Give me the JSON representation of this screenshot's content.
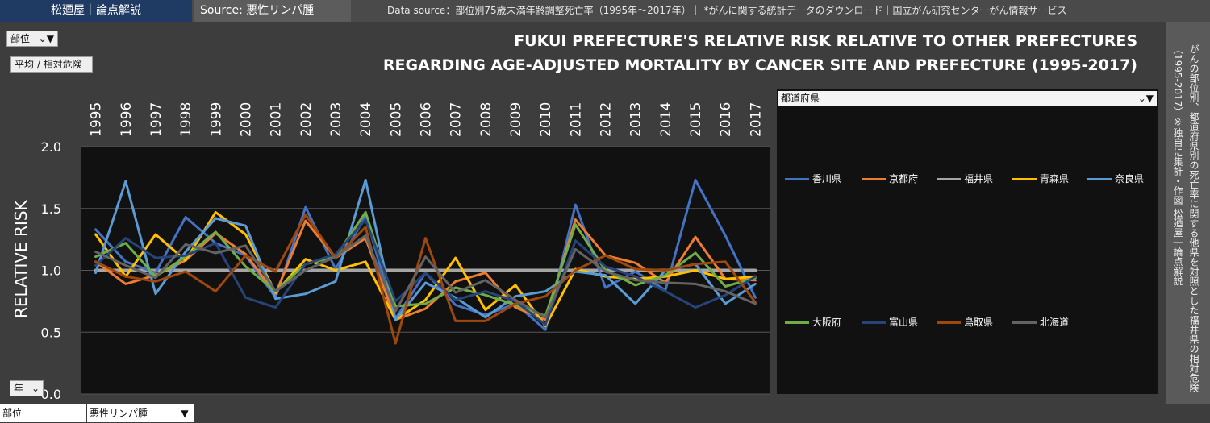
{
  "header": {
    "brand": "松廼屋｜論点解説",
    "source": "Source: 悪性リンパ腫",
    "datasource": "Data source：部位別75歳未満年齢調整死亡率（1995年～2017年）｜ *がんに関する統計データのダウンロード｜国立がん研究センターがん情報サービス"
  },
  "filters": {
    "site_label": "部位",
    "measure_label": "平均 / 相対危険",
    "year_label": "年",
    "prefecture_label": "都道府県"
  },
  "side_note": "がんの部位別、都道府県別の死亡率に関する他県を対照とした福井県の相対危険（1995-2017）※独自に集計・作図 松廼屋｜論点解説",
  "bottom": {
    "field_label": "部位",
    "field_value": "悪性リンパ腫"
  },
  "chart_data": {
    "type": "line",
    "title_line1": "FUKUI PREFECTURE'S RELATIVE RISK RELATIVE TO OTHER PREFECTURES",
    "title_line2": "REGARDING AGE-ADJUSTED MORTALITY BY CANCER SITE AND PREFECTURE (1995-2017)",
    "ylabel": "RELATIVE RISK",
    "ylim": [
      0,
      2
    ],
    "yticks": [
      "0.0",
      "0.5",
      "1.0",
      "1.5",
      "2.0"
    ],
    "grid": true,
    "legend_position": "right",
    "categories": [
      "1995",
      "1996",
      "1997",
      "1998",
      "1999",
      "2000",
      "2001",
      "2002",
      "2003",
      "2004",
      "2005",
      "2006",
      "2007",
      "2008",
      "2009",
      "2010",
      "2011",
      "2012",
      "2013",
      "2014",
      "2015",
      "2016",
      "2017"
    ],
    "series": [
      {
        "name": "香川県",
        "color": "#4472c4",
        "values": [
          1.33,
          1.07,
          0.98,
          1.43,
          1.22,
          1.12,
          0.78,
          1.51,
          1.01,
          1.44,
          0.61,
          0.98,
          0.72,
          0.64,
          0.73,
          0.52,
          1.53,
          0.86,
          0.99,
          0.84,
          1.73,
          1.28,
          0.78
        ]
      },
      {
        "name": "京都府",
        "color": "#ed7d31",
        "values": [
          1.07,
          0.89,
          0.96,
          1.08,
          1.3,
          1.13,
          0.81,
          1.4,
          1.1,
          1.26,
          0.6,
          0.69,
          0.91,
          0.98,
          0.7,
          0.6,
          1.41,
          1.12,
          1.06,
          0.9,
          1.27,
          0.93,
          0.92
        ]
      },
      {
        "name": "福井県",
        "color": "#a5a5a5",
        "values": [
          1.0,
          1.0,
          1.0,
          1.0,
          1.0,
          1.0,
          1.0,
          1.0,
          1.0,
          1.0,
          1.0,
          1.0,
          1.0,
          1.0,
          1.0,
          1.0,
          1.0,
          1.0,
          1.0,
          1.0,
          1.0,
          1.0,
          1.0
        ]
      },
      {
        "name": "青森県",
        "color": "#ffc000",
        "values": [
          1.29,
          0.95,
          1.29,
          1.08,
          1.47,
          1.29,
          0.82,
          1.09,
          1.0,
          1.07,
          0.6,
          0.76,
          1.1,
          0.68,
          0.88,
          0.55,
          1.01,
          0.95,
          0.93,
          0.95,
          1.0,
          0.93,
          0.95
        ]
      },
      {
        "name": "奈良県",
        "color": "#5b9bd5",
        "values": [
          0.98,
          1.72,
          0.81,
          1.15,
          1.42,
          1.36,
          0.77,
          0.81,
          0.91,
          1.73,
          0.6,
          0.9,
          0.78,
          0.62,
          0.79,
          0.83,
          0.99,
          0.96,
          0.73,
          1.0,
          1.05,
          0.73,
          0.89
        ]
      },
      {
        "name": "大阪府",
        "color": "#70ad47",
        "values": [
          1.11,
          1.22,
          0.95,
          1.11,
          1.31,
          1.03,
          0.83,
          1.05,
          1.11,
          1.47,
          0.71,
          0.73,
          0.86,
          0.8,
          0.72,
          0.63,
          1.37,
          1.0,
          0.88,
          0.96,
          1.14,
          0.87,
          0.94
        ]
      },
      {
        "name": "富山県",
        "color": "#264478",
        "values": [
          1.04,
          1.26,
          1.1,
          1.12,
          1.22,
          0.78,
          0.7,
          1.05,
          1.13,
          1.41,
          0.75,
          0.98,
          0.76,
          0.83,
          0.75,
          0.56,
          1.24,
          1.03,
          0.95,
          0.83,
          0.7,
          0.8,
          0.95
        ]
      },
      {
        "name": "鳥取県",
        "color": "#9e480e",
        "values": [
          1.07,
          0.95,
          0.91,
          0.99,
          0.83,
          1.12,
          0.99,
          1.45,
          1.1,
          1.35,
          0.41,
          1.26,
          0.59,
          0.59,
          0.73,
          0.79,
          1.0,
          1.12,
          1.01,
          1.0,
          1.05,
          1.07,
          0.74
        ]
      },
      {
        "name": "北海道",
        "color": "#636363",
        "values": [
          1.15,
          1.04,
          0.94,
          1.21,
          1.14,
          1.2,
          0.83,
          1.0,
          1.11,
          1.28,
          0.67,
          1.11,
          0.82,
          0.92,
          0.76,
          0.62,
          1.17,
          0.99,
          0.92,
          0.9,
          0.89,
          0.83,
          0.73
        ]
      }
    ]
  }
}
